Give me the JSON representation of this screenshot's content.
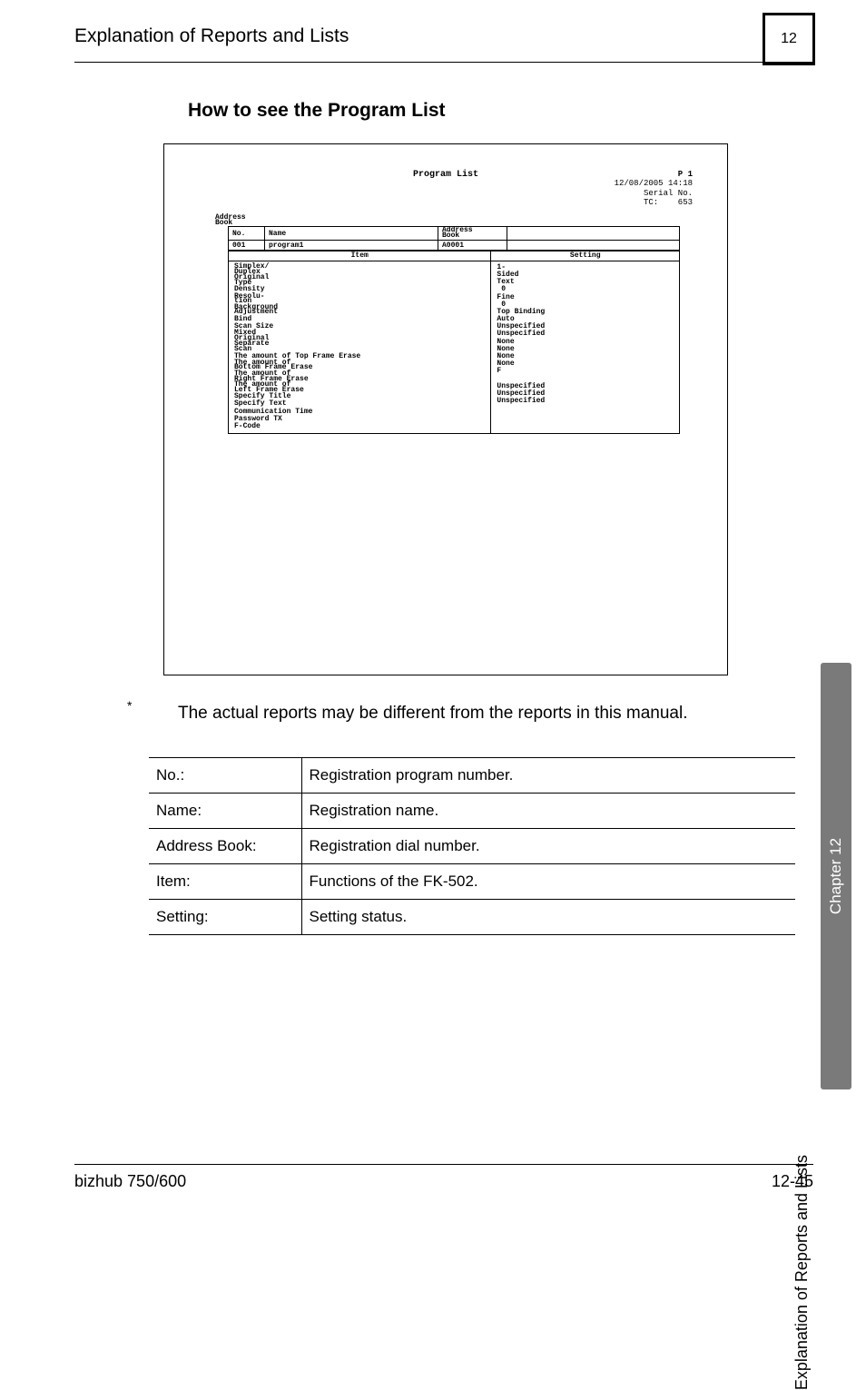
{
  "header": {
    "running_title": "Explanation of Reports and Lists",
    "chapter_number": "12"
  },
  "section_title": "How to see the Program List",
  "report": {
    "title": "Program List",
    "meta": {
      "page": "P  1",
      "datetime": "12/08/2005 14:18",
      "serial_label": "Serial No.",
      "tc_label": "TC:",
      "tc_value": "653"
    },
    "address_book_label_1": "Address",
    "address_book_label_2": "Book",
    "cols": {
      "no": "No.",
      "name": "Name",
      "ab1": "Address",
      "ab2": "Book"
    },
    "row": {
      "no": "001",
      "name": "program1",
      "ab": "A0001"
    },
    "body_cols": {
      "item": "Item",
      "setting": "Setting"
    },
    "items": [
      {
        "stack": [
          "Simplex/",
          "Duplex"
        ]
      },
      {
        "stack": [
          "Original",
          "Type"
        ]
      },
      {
        "t": "Density"
      },
      {
        "stack": [
          "Resolu-",
          "tion"
        ]
      },
      {
        "stack": [
          "Background",
          "Adjustment"
        ]
      },
      {
        "t": "Bind"
      },
      {
        "t": "Scan Size"
      },
      {
        "stack": [
          "Mixed",
          "Original"
        ]
      },
      {
        "stack": [
          "Separate",
          "Scan"
        ]
      },
      {
        "t": "The amount of Top Frame Erase"
      },
      {
        "stack": [
          "The amount of",
          "Bottom Frame Erase"
        ]
      },
      {
        "stack": [
          "The amount of",
          "Right Frame Erase"
        ]
      },
      {
        "stack": [
          "The amount of",
          "Left Frame Erase"
        ]
      },
      {
        "t": "Specify Title"
      },
      {
        "t": "Specify Text"
      },
      {
        "t": "Communication Time"
      },
      {
        "t": "Password TX"
      },
      {
        "t": "F-Code"
      }
    ],
    "settings": [
      "1-\nSided",
      "Text",
      " 0",
      "Fine",
      " 0",
      "Top Binding",
      "Auto",
      "Unspecified",
      "Unspecified",
      "None",
      "None",
      "None",
      "None",
      "F",
      "",
      "Unspecified",
      "Unspecified",
      "Unspecified"
    ]
  },
  "footnote": "The actual reports may be different from the reports in this manual.",
  "defs": [
    {
      "k": "No.:",
      "v": "Registration program number."
    },
    {
      "k": "Name:",
      "v": "Registration name."
    },
    {
      "k": "Address Book:",
      "v": "Registration dial number."
    },
    {
      "k": "Item:",
      "v": "Functions of the FK-502."
    },
    {
      "k": "Setting:",
      "v": "Setting status."
    }
  ],
  "side": {
    "chapter": "Chapter 12",
    "caption": "Explanation of Reports and Lists"
  },
  "footer": {
    "left": "bizhub 750/600",
    "right": "12-45"
  }
}
